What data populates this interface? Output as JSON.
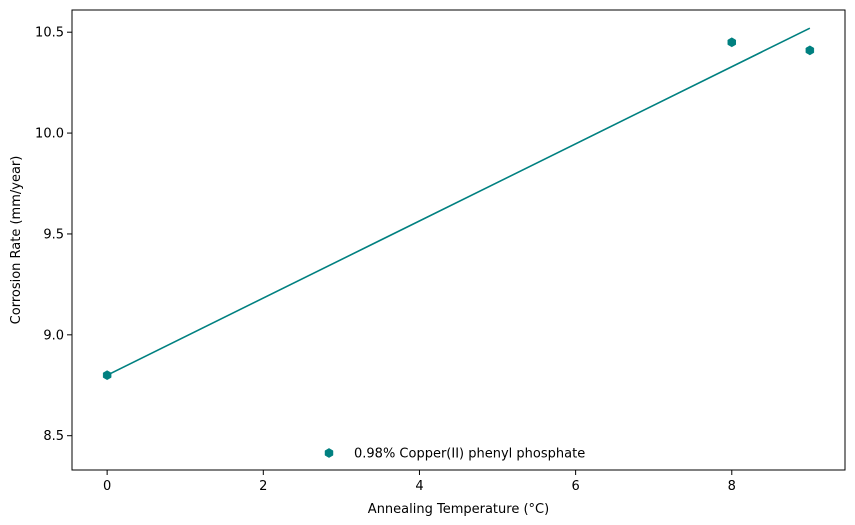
{
  "chart_data": {
    "type": "scatter",
    "xlabel": "Annealing Temperature (°C)",
    "ylabel": "Corrosion Rate (mm/year)",
    "xlim": [
      -0.45,
      9.45
    ],
    "ylim": [
      8.33,
      10.61
    ],
    "x_ticks": [
      0,
      2,
      4,
      6,
      8
    ],
    "y_ticks": [
      8.5,
      9.0,
      9.5,
      10.0,
      10.5
    ],
    "x_tick_labels": [
      "0",
      "2",
      "4",
      "6",
      "8"
    ],
    "y_tick_labels": [
      "8.5",
      "9.0",
      "9.5",
      "10.0",
      "10.5"
    ],
    "grid": false,
    "legend_position": "lower center",
    "series": [
      {
        "name": "0.98% Copper(II) phenyl phosphate",
        "color": "#008080",
        "marker": "hexagon",
        "points": [
          {
            "x": 0,
            "y": 8.8
          },
          {
            "x": 8,
            "y": 10.45
          },
          {
            "x": 9,
            "y": 10.41
          }
        ]
      }
    ],
    "fit_line": {
      "color": "#008080",
      "points": [
        {
          "x": 0,
          "y": 8.8
        },
        {
          "x": 9,
          "y": 10.52
        }
      ]
    }
  }
}
